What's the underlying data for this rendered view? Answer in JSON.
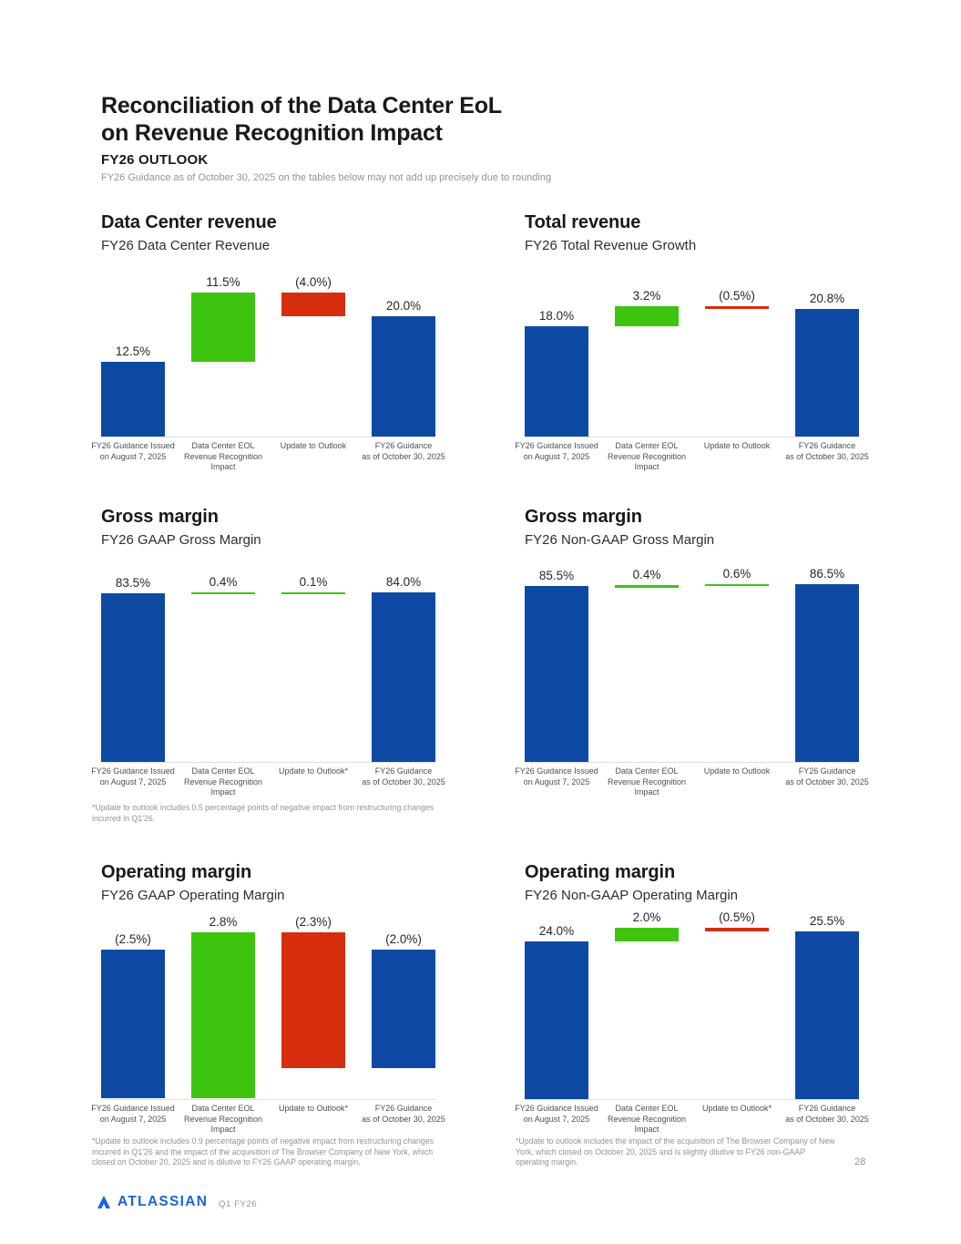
{
  "page": {
    "title_line1": "Reconciliation of the Data Center EoL",
    "title_line2": "on Revenue Recognition Impact",
    "outlook_label": "FY26 OUTLOOK",
    "rounding_note": "FY26 Guidance as of October 30, 2025 on the tables below may not add up precisely due to rounding",
    "page_number": "28",
    "footer": {
      "brand": "ATLASSIAN",
      "period": "Q1 FY26"
    }
  },
  "colors": {
    "blue": "#0E4AA3",
    "green": "#3DC40F",
    "red": "#D62E0C",
    "brand": "#1B63D9",
    "baseline": "#DCDEE2"
  },
  "chart_data": [
    {
      "type": "waterfall-bar",
      "title": "Data Center revenue",
      "subtitle": "FY26 Data Center Revenue",
      "ylim": [
        0,
        24
      ],
      "categories": [
        [
          "FY26 Guidance Issued",
          "on August 7, 2025"
        ],
        [
          "Data Center EOL",
          "Revenue Recognition",
          "Impact"
        ],
        [
          "Update to Outlook"
        ],
        [
          "FY26 Guidance",
          "as of October 30, 2025"
        ]
      ],
      "bars": [
        {
          "label": "12.5%",
          "value": 12.5,
          "from": 0,
          "to": 12.5,
          "color": "blue"
        },
        {
          "label": "11.5%",
          "value": 11.5,
          "from": 12.5,
          "to": 24,
          "color": "green"
        },
        {
          "label": "(4.0%)",
          "value": -4.0,
          "from": 24,
          "to": 20,
          "color": "red"
        },
        {
          "label": "20.0%",
          "value": 20.0,
          "from": 0,
          "to": 20,
          "color": "blue"
        }
      ],
      "footnote": null
    },
    {
      "type": "waterfall-bar",
      "title": "Total revenue",
      "subtitle": "FY26 Total Revenue Growth",
      "ylim": [
        0,
        21.2
      ],
      "categories": [
        [
          "FY26 Guidance Issued",
          "on August 7, 2025"
        ],
        [
          "Data Center EOL",
          "Revenue Recognition",
          "Impact"
        ],
        [
          "Update to Outlook"
        ],
        [
          "FY26 Guidance",
          "as of October 30, 2025"
        ]
      ],
      "bars": [
        {
          "label": "18.0%",
          "value": 18.0,
          "from": 0,
          "to": 18,
          "color": "blue"
        },
        {
          "label": "3.2%",
          "value": 3.2,
          "from": 18,
          "to": 21.2,
          "color": "green"
        },
        {
          "label": "(0.5%)",
          "value": -0.5,
          "from": 21.2,
          "to": 20.7,
          "color": "red"
        },
        {
          "label": "20.8%",
          "value": 20.8,
          "from": 0,
          "to": 20.8,
          "color": "blue"
        }
      ],
      "footnote": null
    },
    {
      "type": "waterfall-bar",
      "title": "Gross margin",
      "subtitle": "FY26 GAAP Gross Margin",
      "ylim": [
        0,
        84.3
      ],
      "categories": [
        [
          "FY26 Guidance Issued",
          "on August 7, 2025"
        ],
        [
          "Data Center EOL",
          "Revenue Recognition",
          "Impact"
        ],
        [
          "Update to Outlook*"
        ],
        [
          "FY26 Guidance",
          "as of October 30, 2025"
        ]
      ],
      "bars": [
        {
          "label": "83.5%",
          "value": 83.5,
          "from": 0,
          "to": 83.5,
          "color": "blue"
        },
        {
          "label": "0.4%",
          "value": 0.4,
          "from": 83.5,
          "to": 83.9,
          "color": "green"
        },
        {
          "label": "0.1%",
          "value": 0.1,
          "from": 83.9,
          "to": 84.0,
          "color": "green"
        },
        {
          "label": "84.0%",
          "value": 84.0,
          "from": 0,
          "to": 84.0,
          "color": "blue"
        }
      ],
      "footnote": "*Update to outlook includes 0.5 percentage points of negative impact from restructuring changes incurred in Q1'26."
    },
    {
      "type": "waterfall-bar",
      "title": "Gross margin",
      "subtitle": "FY26 Non-GAAP Gross Margin",
      "ylim": [
        0,
        86.9
      ],
      "categories": [
        [
          "FY26 Guidance Issued",
          "on August 7, 2025"
        ],
        [
          "Data Center EOL",
          "Revenue Recognition",
          "Impact"
        ],
        [
          "Update to Outlook"
        ],
        [
          "FY26 Guidance",
          "as of October 30, 2025"
        ]
      ],
      "bars": [
        {
          "label": "85.5%",
          "value": 85.5,
          "from": 0,
          "to": 85.5,
          "color": "blue"
        },
        {
          "label": "0.4%",
          "value": 0.4,
          "from": 85.5,
          "to": 85.9,
          "color": "green"
        },
        {
          "label": "0.6%",
          "value": 0.6,
          "from": 85.9,
          "to": 86.5,
          "color": "green"
        },
        {
          "label": "86.5%",
          "value": 86.5,
          "from": 0,
          "to": 86.5,
          "color": "blue"
        }
      ],
      "footnote": null
    },
    {
      "type": "waterfall-bar",
      "title": "Operating margin",
      "subtitle": "FY26 GAAP Operating Margin",
      "ylim": [
        -2.52,
        0.45
      ],
      "categories": [
        [
          "FY26 Guidance Issued",
          "on August 7, 2025"
        ],
        [
          "Data Center EOL",
          "Revenue Recognition",
          "Impact"
        ],
        [
          "Update to Outlook*"
        ],
        [
          "FY26 Guidance",
          "as of October 30, 2025"
        ]
      ],
      "bars": [
        {
          "label": "(2.5%)",
          "value": -2.5,
          "from": 0,
          "to": -2.5,
          "color": "blue"
        },
        {
          "label": "2.8%",
          "value": 2.8,
          "from": -2.5,
          "to": 0.3,
          "color": "green"
        },
        {
          "label": "(2.3%)",
          "value": -2.3,
          "from": 0.3,
          "to": -2.0,
          "color": "red"
        },
        {
          "label": "(2.0%)",
          "value": -2.0,
          "from": 0,
          "to": -2.0,
          "color": "blue"
        }
      ],
      "footnote": "*Update to outlook includes 0.9 percentage points of negative impact from restructuring changes incurred in Q1'26 and the impact of the acquisition of The Browser Company of New York, which closed on October 20, 2025 and is dilutive to FY26 GAAP operating margin."
    },
    {
      "type": "waterfall-bar",
      "title": "Operating margin",
      "subtitle": "FY26 Non-GAAP Operating Margin",
      "ylim": [
        0,
        26.2
      ],
      "categories": [
        [
          "FY26 Guidance Issued",
          "on August 7, 2025"
        ],
        [
          "Data Center EOL",
          "Revenue Recognition",
          "Impact"
        ],
        [
          "Update to Outlook*"
        ],
        [
          "FY26 Guidance",
          "as of October 30, 2025"
        ]
      ],
      "bars": [
        {
          "label": "24.0%",
          "value": 24.0,
          "from": 0,
          "to": 24,
          "color": "blue"
        },
        {
          "label": "2.0%",
          "value": 2.0,
          "from": 24,
          "to": 26,
          "color": "green"
        },
        {
          "label": "(0.5%)",
          "value": -0.5,
          "from": 26,
          "to": 25.5,
          "color": "red"
        },
        {
          "label": "25.5%",
          "value": 25.5,
          "from": 0,
          "to": 25.5,
          "color": "blue"
        }
      ],
      "footnote": "*Update to outlook includes the impact of the acquisition of The Browser Company of New York, which closed on October 20, 2025 and is slightly dilutive to FY26 non-GAAP operating margin."
    }
  ]
}
